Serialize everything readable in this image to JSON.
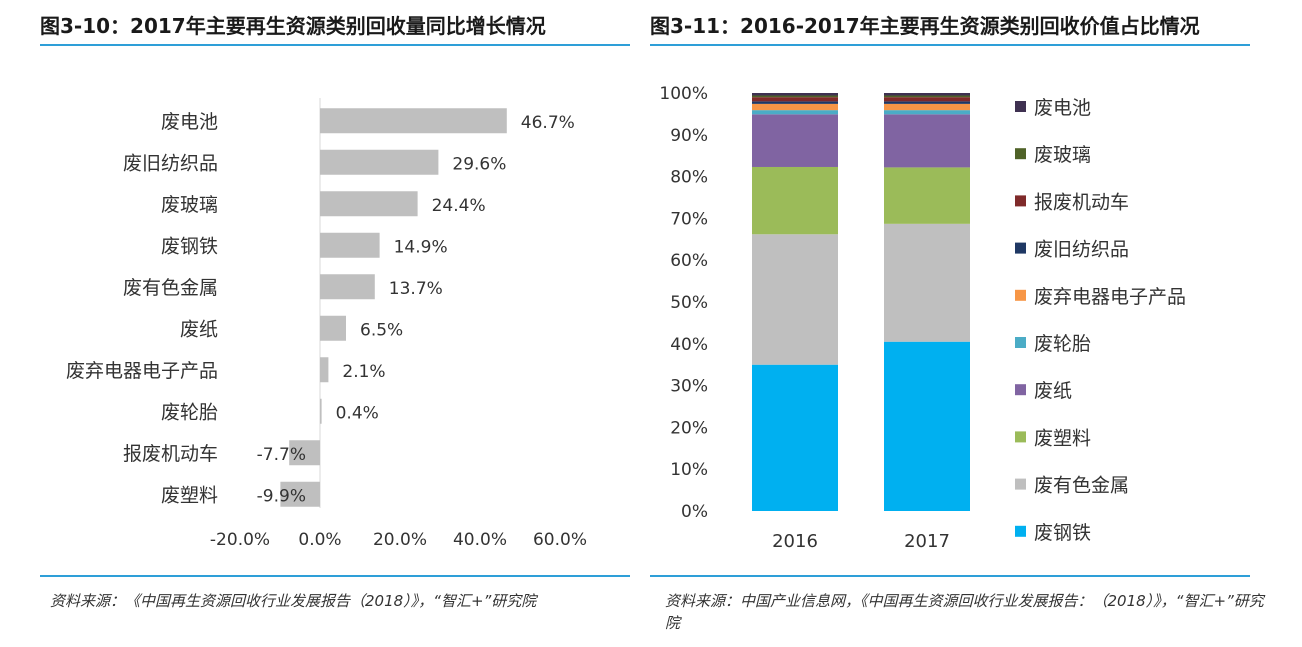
{
  "left_panel": {
    "title": "图3-10：2017年主要再生资源类别回收量同比增长情况",
    "source": "资料来源：《中国再生资源回收行业发展报告（2018）》，“智汇+”研究院"
  },
  "right_panel": {
    "title": "图3-11：2016-2017年主要再生资源类别回收价值占比情况",
    "source": "资料来源：中国产业信息网，《中国再生资源回收行业发展报告：（2018）》，“智汇+”研究院"
  },
  "colors": {
    "accent_line": "#2e9fd8",
    "bar_gray": "#bfbfbf"
  },
  "chart_data": [
    {
      "type": "bar",
      "orientation": "horizontal",
      "categories": [
        "废电池",
        "废旧纺织品",
        "废玻璃",
        "废钢铁",
        "废有色金属",
        "废纸",
        "废弃电器电子产品",
        "废轮胎",
        "报废机动车",
        "废塑料"
      ],
      "values": [
        46.7,
        29.6,
        24.4,
        14.9,
        13.7,
        6.5,
        2.1,
        0.4,
        -7.7,
        -9.9
      ],
      "value_labels": [
        "46.7%",
        "29.6%",
        "24.4%",
        "14.9%",
        "13.7%",
        "6.5%",
        "2.1%",
        "0.4%",
        "-7.7%",
        "-9.9%"
      ],
      "xlim": [
        -20,
        60
      ],
      "x_ticks": [
        "-20.0%",
        "0.0%",
        "20.0%",
        "40.0%",
        "60.0%"
      ],
      "grid": false,
      "legend": "none"
    },
    {
      "type": "bar",
      "orientation": "vertical",
      "stacked": true,
      "categories": [
        "2016",
        "2017"
      ],
      "series": [
        {
          "name": "废钢铁",
          "color": "#00b0f0",
          "values": [
            35.0,
            40.5
          ]
        },
        {
          "name": "废有色金属",
          "color": "#bfbfbf",
          "values": [
            31.2,
            28.2
          ]
        },
        {
          "name": "废塑料",
          "color": "#9bbb59",
          "values": [
            16.1,
            13.5
          ]
        },
        {
          "name": "废纸",
          "color": "#8064a2",
          "values": [
            12.6,
            12.7
          ]
        },
        {
          "name": "废轮胎",
          "color": "#4bacc6",
          "values": [
            1.0,
            1.0
          ]
        },
        {
          "name": "废弃电器电子产品",
          "color": "#f79646",
          "values": [
            1.5,
            1.5
          ]
        },
        {
          "name": "废旧纺织品",
          "color": "#1f3864",
          "values": [
            0.6,
            0.6
          ]
        },
        {
          "name": "报废机动车",
          "color": "#7f2a2a",
          "values": [
            1.0,
            1.0
          ]
        },
        {
          "name": "废玻璃",
          "color": "#4f6228",
          "values": [
            0.4,
            0.4
          ]
        },
        {
          "name": "废电池",
          "color": "#3f3151",
          "values": [
            0.6,
            0.6
          ]
        }
      ],
      "ylim": [
        0,
        100
      ],
      "y_ticks": [
        "0%",
        "10%",
        "20%",
        "30%",
        "40%",
        "50%",
        "60%",
        "70%",
        "80%",
        "90%",
        "100%"
      ],
      "legend_order": [
        "废电池",
        "废玻璃",
        "报废机动车",
        "废旧纺织品",
        "废弃电器电子产品",
        "废轮胎",
        "废纸",
        "废塑料",
        "废有色金属",
        "废钢铁"
      ],
      "grid": false,
      "legend": "right"
    }
  ]
}
